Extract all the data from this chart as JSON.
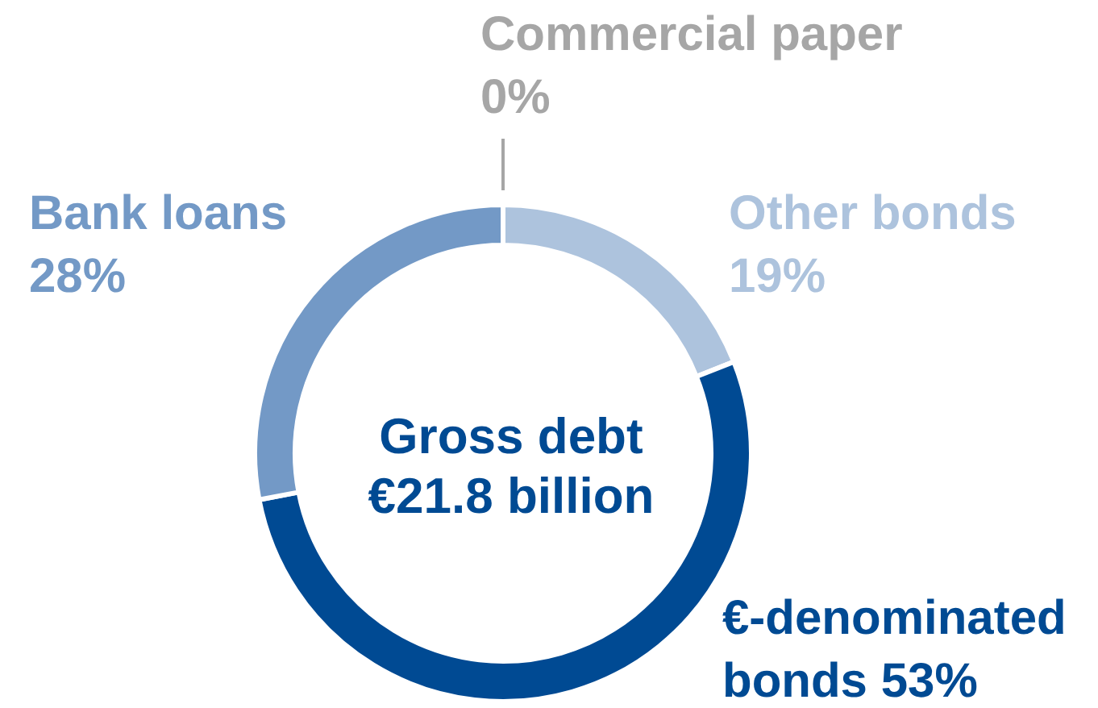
{
  "chart_data": {
    "type": "donut",
    "title": "Gross debt\n€21.8 billion",
    "categories": [
      "Commercial paper",
      "Other bonds",
      "€-denominated bonds",
      "Bank loans"
    ],
    "values": [
      0,
      19,
      53,
      28
    ],
    "value_labels": [
      "0%",
      "19%",
      "53%",
      "28%"
    ],
    "colors": [
      "#a6a6a6",
      "#adc3dd",
      "#004a93",
      "#7399c6"
    ],
    "legend": false
  }
}
